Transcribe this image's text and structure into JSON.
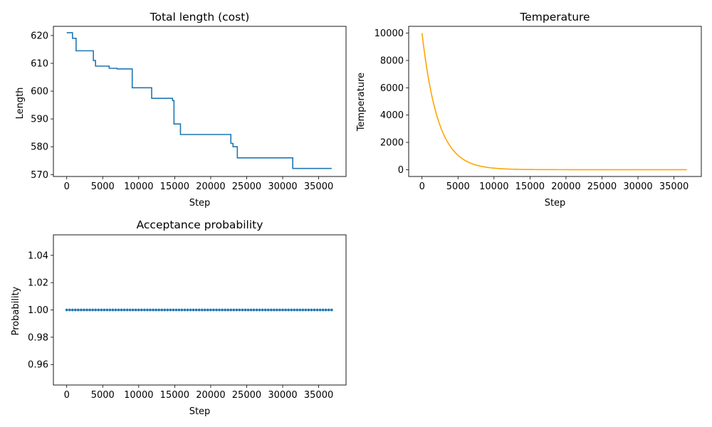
{
  "chart_data": [
    {
      "type": "line",
      "title": "Total length (cost)",
      "xlabel": "Step",
      "ylabel": "Length",
      "xlim": [
        -1850,
        38800
      ],
      "ylim": [
        569.3,
        623.3
      ],
      "xticks": [
        0,
        5000,
        10000,
        15000,
        20000,
        25000,
        30000,
        35000
      ],
      "yticks": [
        570,
        580,
        590,
        600,
        610,
        620
      ],
      "grid": false,
      "color": "#1f77b4",
      "step_points": [
        [
          0,
          621
        ],
        [
          800,
          619
        ],
        [
          1300,
          614.5
        ],
        [
          3700,
          611
        ],
        [
          4000,
          609
        ],
        [
          5900,
          608.2
        ],
        [
          7000,
          608
        ],
        [
          9100,
          601.2
        ],
        [
          11800,
          597.4
        ],
        [
          14700,
          596.6
        ],
        [
          14900,
          588.2
        ],
        [
          15800,
          584.4
        ],
        [
          22800,
          581.2
        ],
        [
          23100,
          580
        ],
        [
          23700,
          576
        ],
        [
          31400,
          572.2
        ]
      ],
      "x_end": 36800
    },
    {
      "type": "line",
      "title": "Temperature",
      "xlabel": "Step",
      "ylabel": "Temperature",
      "xlim": [
        -1850,
        38800
      ],
      "ylim": [
        -500,
        10500
      ],
      "xticks": [
        0,
        5000,
        10000,
        15000,
        20000,
        25000,
        30000,
        35000
      ],
      "yticks": [
        0,
        2000,
        4000,
        6000,
        8000,
        10000
      ],
      "grid": false,
      "color": "#ffa500",
      "initial_temperature": 10000,
      "decay_per_step": 0.99955,
      "x_end": 36800
    },
    {
      "type": "scatter",
      "title": "Acceptance probability",
      "xlabel": "Step",
      "ylabel": "Probability",
      "xlim": [
        -1850,
        38800
      ],
      "ylim": [
        0.945,
        1.055
      ],
      "xticks": [
        0,
        5000,
        10000,
        15000,
        20000,
        25000,
        30000,
        35000
      ],
      "yticks": [
        0.96,
        0.98,
        1.0,
        1.02,
        1.04
      ],
      "ytick_labels": [
        "0.96",
        "0.98",
        "1.00",
        "1.02",
        "1.04"
      ],
      "grid": false,
      "color": "#1f77b4",
      "constant_value": 1.0,
      "x_start": 0,
      "x_end": 36800
    }
  ]
}
